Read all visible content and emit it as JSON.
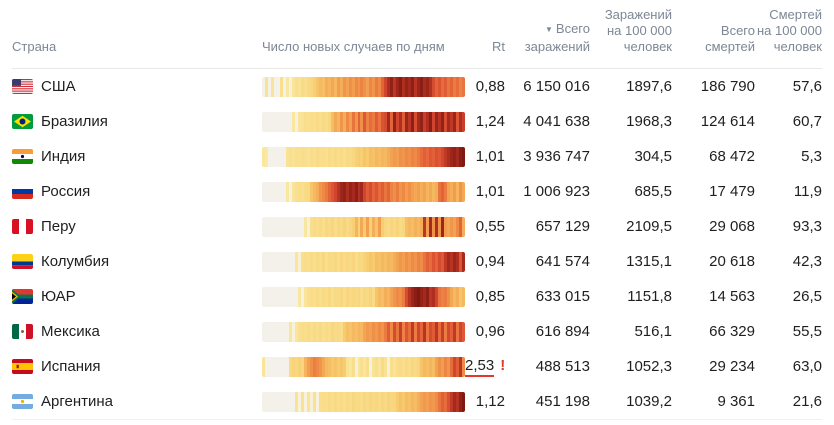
{
  "table": {
    "headers": {
      "country": "Страна",
      "daily_cases": "Число новых случаев по дням",
      "rt": "Rt",
      "sort_icon": "▼",
      "total_cases": "Всего заражений",
      "cases_per_100k": "Заражений на 100 000 человек",
      "total_deaths": "Всего смертей",
      "deaths_per_100k": "Смертей на 100 000 человек"
    },
    "alert_mark": "!",
    "rows": [
      {
        "country": "США",
        "flag": "us",
        "rt": "0,88",
        "rt_alert": false,
        "total_cases": "6 150 016",
        "cases_per_100k": "1897,6",
        "total_deaths": "186 790",
        "deaths_per_100k": "57,6",
        "heat": [
          2,
          28,
          2,
          26,
          2,
          2,
          30,
          2,
          24,
          8,
          26,
          30,
          28,
          32,
          30,
          33,
          35,
          38,
          42,
          46,
          44,
          50,
          48,
          52,
          47,
          55,
          50,
          58,
          54,
          60,
          56,
          62,
          58,
          64,
          60,
          55,
          63,
          58,
          66,
          62,
          72,
          80,
          88,
          95,
          85,
          92,
          98,
          88,
          94,
          90,
          96,
          86,
          92,
          97,
          89,
          93,
          87,
          78,
          72,
          76,
          70,
          74,
          68,
          72,
          66,
          70,
          64,
          68
        ]
      },
      {
        "country": "Бразилия",
        "flag": "br",
        "rt": "1,24",
        "rt_alert": false,
        "total_cases": "4 041 638",
        "cases_per_100k": "1968,3",
        "total_deaths": "124 614",
        "deaths_per_100k": "60,7",
        "heat": [
          2,
          2,
          2,
          2,
          2,
          2,
          2,
          2,
          2,
          2,
          24,
          6,
          26,
          28,
          30,
          29,
          31,
          30,
          32,
          30,
          33,
          31,
          34,
          45,
          52,
          48,
          58,
          50,
          62,
          55,
          68,
          58,
          72,
          60,
          75,
          64,
          70,
          66,
          74,
          68,
          76,
          78,
          90,
          72,
          95,
          80,
          88,
          74,
          92,
          85,
          96,
          78,
          90,
          95,
          82,
          88,
          97,
          80,
          93,
          86,
          95,
          78,
          90,
          84,
          92,
          76,
          88,
          82
        ]
      },
      {
        "country": "Индия",
        "flag": "in",
        "rt": "1,01",
        "rt_alert": false,
        "total_cases": "3 936 747",
        "cases_per_100k": "304,5",
        "total_deaths": "68 472",
        "deaths_per_100k": "5,3",
        "heat": [
          24,
          22,
          2,
          2,
          2,
          2,
          2,
          2,
          27,
          29,
          28,
          30,
          29,
          31,
          30,
          28,
          31,
          29,
          32,
          30,
          31,
          29,
          32,
          30,
          33,
          31,
          32,
          30,
          33,
          32,
          34,
          37,
          40,
          38,
          42,
          40,
          45,
          43,
          47,
          45,
          48,
          46,
          50,
          54,
          57,
          55,
          60,
          58,
          62,
          60,
          64,
          62,
          66,
          70,
          73,
          71,
          75,
          73,
          77,
          75,
          79,
          84,
          88,
          92,
          95,
          90,
          97,
          100
        ]
      },
      {
        "country": "Россия",
        "flag": "ru",
        "rt": "1,01",
        "rt_alert": false,
        "total_cases": "1 006 923",
        "cases_per_100k": "685,5",
        "total_deaths": "17 479",
        "deaths_per_100k": "11,9",
        "heat": [
          2,
          2,
          2,
          2,
          2,
          2,
          2,
          2,
          24,
          6,
          26,
          29,
          31,
          30,
          32,
          33,
          42,
          46,
          50,
          58,
          62,
          66,
          72,
          76,
          80,
          86,
          92,
          95,
          88,
          94,
          90,
          96,
          87,
          91,
          80,
          74,
          78,
          72,
          76,
          70,
          74,
          68,
          72,
          64,
          60,
          66,
          58,
          62,
          56,
          60,
          55,
          52,
          55,
          50,
          54,
          48,
          52,
          47,
          50,
          68,
          72,
          66,
          54,
          50,
          56,
          48,
          58,
          52
        ]
      },
      {
        "country": "Перу",
        "flag": "pe",
        "rt": "0,55",
        "rt_alert": false,
        "total_cases": "657 129",
        "cases_per_100k": "2109,5",
        "total_deaths": "29 068",
        "deaths_per_100k": "93,3",
        "heat": [
          2,
          2,
          2,
          2,
          2,
          2,
          2,
          2,
          2,
          2,
          2,
          2,
          2,
          2,
          24,
          8,
          30,
          32,
          31,
          33,
          30,
          34,
          32,
          35,
          31,
          34,
          33,
          36,
          32,
          35,
          38,
          48,
          36,
          52,
          40,
          55,
          38,
          50,
          42,
          56,
          39,
          34,
          32,
          35,
          33,
          36,
          32,
          34,
          44,
          47,
          45,
          49,
          46,
          50,
          85,
          55,
          90,
          60,
          88,
          58,
          92,
          56,
          52,
          58,
          54,
          62,
          72,
          50
        ]
      },
      {
        "country": "Колумбия",
        "flag": "co",
        "rt": "0,94",
        "rt_alert": false,
        "total_cases": "641 574",
        "cases_per_100k": "1315,1",
        "total_deaths": "20 618",
        "deaths_per_100k": "42,3",
        "heat": [
          2,
          2,
          2,
          2,
          2,
          2,
          2,
          2,
          2,
          2,
          2,
          25,
          8,
          29,
          31,
          30,
          32,
          30,
          33,
          31,
          34,
          30,
          33,
          32,
          34,
          31,
          35,
          32,
          34,
          33,
          35,
          31,
          34,
          33,
          36,
          39,
          42,
          40,
          45,
          43,
          47,
          44,
          48,
          46,
          50,
          54,
          58,
          55,
          60,
          57,
          62,
          59,
          64,
          61,
          68,
          73,
          70,
          76,
          72,
          78,
          75,
          84,
          90,
          86,
          92,
          88,
          76,
          90
        ]
      },
      {
        "country": "ЮАР",
        "flag": "za",
        "rt": "0,85",
        "rt_alert": false,
        "total_cases": "633 015",
        "cases_per_100k": "1151,8",
        "total_deaths": "14 563",
        "deaths_per_100k": "26,5",
        "heat": [
          2,
          2,
          2,
          2,
          2,
          2,
          2,
          2,
          2,
          2,
          2,
          2,
          24,
          6,
          26,
          29,
          31,
          30,
          32,
          30,
          33,
          31,
          34,
          30,
          33,
          32,
          34,
          31,
          35,
          32,
          34,
          33,
          35,
          31,
          34,
          33,
          36,
          32,
          42,
          46,
          44,
          50,
          48,
          54,
          58,
          62,
          60,
          66,
          78,
          86,
          92,
          97,
          100,
          94,
          90,
          96,
          85,
          88,
          80,
          68,
          64,
          66,
          60,
          52,
          46,
          50,
          42,
          46
        ]
      },
      {
        "country": "Мексика",
        "flag": "mx",
        "rt": "0,96",
        "rt_alert": false,
        "total_cases": "616 894",
        "cases_per_100k": "516,1",
        "total_deaths": "66 329",
        "deaths_per_100k": "55,5",
        "heat": [
          2,
          2,
          2,
          2,
          2,
          2,
          2,
          2,
          2,
          24,
          6,
          25,
          29,
          31,
          30,
          32,
          30,
          33,
          31,
          33,
          30,
          32,
          31,
          34,
          32,
          33,
          31,
          40,
          44,
          42,
          46,
          44,
          48,
          46,
          53,
          57,
          55,
          60,
          57,
          62,
          59,
          66,
          74,
          62,
          78,
          68,
          82,
          64,
          76,
          70,
          84,
          66,
          80,
          72,
          86,
          68,
          78,
          74,
          85,
          70,
          82,
          66,
          79,
          73,
          84,
          68,
          80,
          75
        ]
      },
      {
        "country": "Испания",
        "flag": "es",
        "rt": "2,53",
        "rt_alert": true,
        "total_cases": "488 513",
        "cases_per_100k": "1052,3",
        "total_deaths": "29 234",
        "deaths_per_100k": "63,0",
        "heat": [
          26,
          2,
          2,
          2,
          2,
          2,
          2,
          2,
          2,
          33,
          36,
          34,
          37,
          35,
          48,
          55,
          60,
          65,
          62,
          58,
          52,
          46,
          44,
          41,
          43,
          40,
          42,
          39,
          28,
          24,
          30,
          8,
          26,
          29,
          25,
          31,
          6,
          27,
          30,
          26,
          32,
          28,
          8,
          30,
          27,
          31,
          32,
          30,
          33,
          31,
          34,
          32,
          35,
          42,
          46,
          44,
          48,
          45,
          54,
          60,
          56,
          63,
          58,
          70,
          80,
          74,
          85,
          62
        ]
      },
      {
        "country": "Аргентина",
        "flag": "ar",
        "rt": "1,12",
        "rt_alert": false,
        "total_cases": "451 198",
        "cases_per_100k": "1039,2",
        "total_deaths": "9 361",
        "deaths_per_100k": "21,6",
        "heat": [
          2,
          2,
          2,
          2,
          2,
          2,
          2,
          2,
          2,
          2,
          2,
          27,
          6,
          28,
          7,
          26,
          8,
          28,
          6,
          30,
          31,
          30,
          32,
          30,
          33,
          31,
          32,
          30,
          33,
          31,
          34,
          32,
          33,
          31,
          34,
          32,
          35,
          33,
          34,
          32,
          35,
          33,
          36,
          34,
          35,
          40,
          43,
          41,
          45,
          43,
          47,
          45,
          49,
          54,
          57,
          55,
          59,
          57,
          61,
          68,
          73,
          70,
          77,
          84,
          90,
          86,
          95,
          100
        ]
      }
    ]
  },
  "heat_palette": [
    [
      0,
      "#f2f1ef"
    ],
    [
      8,
      "#f8f1da"
    ],
    [
      22,
      "#fae9a4"
    ],
    [
      30,
      "#f9df8d"
    ],
    [
      40,
      "#f7cb6e"
    ],
    [
      50,
      "#f4ae59"
    ],
    [
      60,
      "#ef9049"
    ],
    [
      68,
      "#e9753e"
    ],
    [
      75,
      "#df5835"
    ],
    [
      82,
      "#c83e2a"
    ],
    [
      90,
      "#a52a1d"
    ],
    [
      100,
      "#7f1811"
    ]
  ],
  "colors": {
    "header_text": "#7d8795",
    "body_text": "#1f1f1f",
    "alert_red": "#e2392b",
    "divider": "#e8e8e8"
  }
}
